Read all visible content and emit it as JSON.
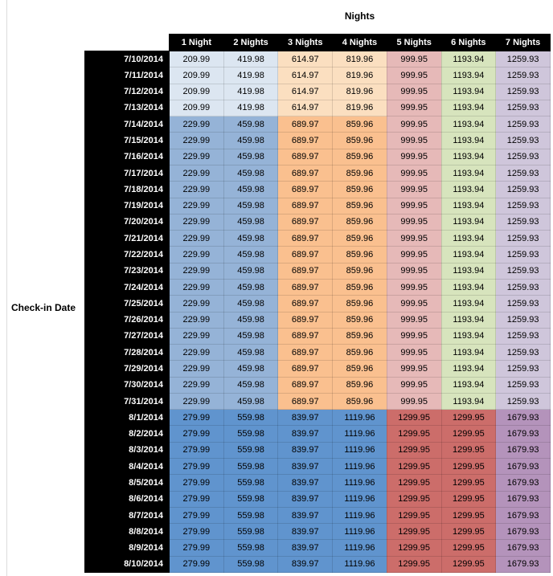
{
  "title": "Nights",
  "axis_label": "Check-in Date",
  "table": {
    "columns": [
      "1 Night",
      "2 Nights",
      "3 Nights",
      "4 Nights",
      "5 Nights",
      "6 Nights",
      "7 Nights"
    ],
    "rows": [
      {
        "date": "7/10/2014",
        "band": "early",
        "values": [
          "209.99",
          "419.98",
          "614.97",
          "819.96",
          "999.95",
          "1193.94",
          "1259.93"
        ]
      },
      {
        "date": "7/11/2014",
        "band": "early",
        "values": [
          "209.99",
          "419.98",
          "614.97",
          "819.96",
          "999.95",
          "1193.94",
          "1259.93"
        ]
      },
      {
        "date": "7/12/2014",
        "band": "early",
        "values": [
          "209.99",
          "419.98",
          "614.97",
          "819.96",
          "999.95",
          "1193.94",
          "1259.93"
        ]
      },
      {
        "date": "7/13/2014",
        "band": "early",
        "values": [
          "209.99",
          "419.98",
          "614.97",
          "819.96",
          "999.95",
          "1193.94",
          "1259.93"
        ]
      },
      {
        "date": "7/14/2014",
        "band": "mid",
        "values": [
          "229.99",
          "459.98",
          "689.97",
          "859.96",
          "999.95",
          "1193.94",
          "1259.93"
        ]
      },
      {
        "date": "7/15/2014",
        "band": "mid",
        "values": [
          "229.99",
          "459.98",
          "689.97",
          "859.96",
          "999.95",
          "1193.94",
          "1259.93"
        ]
      },
      {
        "date": "7/16/2014",
        "band": "mid",
        "values": [
          "229.99",
          "459.98",
          "689.97",
          "859.96",
          "999.95",
          "1193.94",
          "1259.93"
        ]
      },
      {
        "date": "7/17/2014",
        "band": "mid",
        "values": [
          "229.99",
          "459.98",
          "689.97",
          "859.96",
          "999.95",
          "1193.94",
          "1259.93"
        ]
      },
      {
        "date": "7/18/2014",
        "band": "mid",
        "values": [
          "229.99",
          "459.98",
          "689.97",
          "859.96",
          "999.95",
          "1193.94",
          "1259.93"
        ]
      },
      {
        "date": "7/19/2014",
        "band": "mid",
        "values": [
          "229.99",
          "459.98",
          "689.97",
          "859.96",
          "999.95",
          "1193.94",
          "1259.93"
        ]
      },
      {
        "date": "7/20/2014",
        "band": "mid",
        "values": [
          "229.99",
          "459.98",
          "689.97",
          "859.96",
          "999.95",
          "1193.94",
          "1259.93"
        ]
      },
      {
        "date": "7/21/2014",
        "band": "mid",
        "values": [
          "229.99",
          "459.98",
          "689.97",
          "859.96",
          "999.95",
          "1193.94",
          "1259.93"
        ]
      },
      {
        "date": "7/22/2014",
        "band": "mid",
        "values": [
          "229.99",
          "459.98",
          "689.97",
          "859.96",
          "999.95",
          "1193.94",
          "1259.93"
        ]
      },
      {
        "date": "7/23/2014",
        "band": "mid",
        "values": [
          "229.99",
          "459.98",
          "689.97",
          "859.96",
          "999.95",
          "1193.94",
          "1259.93"
        ]
      },
      {
        "date": "7/24/2014",
        "band": "mid",
        "values": [
          "229.99",
          "459.98",
          "689.97",
          "859.96",
          "999.95",
          "1193.94",
          "1259.93"
        ]
      },
      {
        "date": "7/25/2014",
        "band": "mid",
        "values": [
          "229.99",
          "459.98",
          "689.97",
          "859.96",
          "999.95",
          "1193.94",
          "1259.93"
        ]
      },
      {
        "date": "7/26/2014",
        "band": "mid",
        "values": [
          "229.99",
          "459.98",
          "689.97",
          "859.96",
          "999.95",
          "1193.94",
          "1259.93"
        ]
      },
      {
        "date": "7/27/2014",
        "band": "mid",
        "values": [
          "229.99",
          "459.98",
          "689.97",
          "859.96",
          "999.95",
          "1193.94",
          "1259.93"
        ]
      },
      {
        "date": "7/28/2014",
        "band": "mid",
        "values": [
          "229.99",
          "459.98",
          "689.97",
          "859.96",
          "999.95",
          "1193.94",
          "1259.93"
        ]
      },
      {
        "date": "7/29/2014",
        "band": "mid",
        "values": [
          "229.99",
          "459.98",
          "689.97",
          "859.96",
          "999.95",
          "1193.94",
          "1259.93"
        ]
      },
      {
        "date": "7/30/2014",
        "band": "mid",
        "values": [
          "229.99",
          "459.98",
          "689.97",
          "859.96",
          "999.95",
          "1193.94",
          "1259.93"
        ]
      },
      {
        "date": "7/31/2014",
        "band": "mid",
        "values": [
          "229.99",
          "459.98",
          "689.97",
          "859.96",
          "999.95",
          "1193.94",
          "1259.93"
        ]
      },
      {
        "date": "8/1/2014",
        "band": "late",
        "values": [
          "279.99",
          "559.98",
          "839.97",
          "1119.96",
          "1299.95",
          "1299.95",
          "1679.93"
        ]
      },
      {
        "date": "8/2/2014",
        "band": "late",
        "values": [
          "279.99",
          "559.98",
          "839.97",
          "1119.96",
          "1299.95",
          "1299.95",
          "1679.93"
        ]
      },
      {
        "date": "8/3/2014",
        "band": "late",
        "values": [
          "279.99",
          "559.98",
          "839.97",
          "1119.96",
          "1299.95",
          "1299.95",
          "1679.93"
        ]
      },
      {
        "date": "8/4/2014",
        "band": "late",
        "values": [
          "279.99",
          "559.98",
          "839.97",
          "1119.96",
          "1299.95",
          "1299.95",
          "1679.93"
        ]
      },
      {
        "date": "8/5/2014",
        "band": "late",
        "values": [
          "279.99",
          "559.98",
          "839.97",
          "1119.96",
          "1299.95",
          "1299.95",
          "1679.93"
        ]
      },
      {
        "date": "8/6/2014",
        "band": "late",
        "values": [
          "279.99",
          "559.98",
          "839.97",
          "1119.96",
          "1299.95",
          "1299.95",
          "1679.93"
        ]
      },
      {
        "date": "8/7/2014",
        "band": "late",
        "values": [
          "279.99",
          "559.98",
          "839.97",
          "1119.96",
          "1299.95",
          "1299.95",
          "1679.93"
        ]
      },
      {
        "date": "8/8/2014",
        "band": "late",
        "values": [
          "279.99",
          "559.98",
          "839.97",
          "1119.96",
          "1299.95",
          "1299.95",
          "1679.93"
        ]
      },
      {
        "date": "8/9/2014",
        "band": "late",
        "values": [
          "279.99",
          "559.98",
          "839.97",
          "1119.96",
          "1299.95",
          "1299.95",
          "1679.93"
        ]
      },
      {
        "date": "8/10/2014",
        "band": "late",
        "values": [
          "279.99",
          "559.98",
          "839.97",
          "1119.96",
          "1299.95",
          "1299.95",
          "1679.93"
        ]
      }
    ]
  },
  "colors": {
    "header_bg": "#000000",
    "header_text": "#ffffff",
    "band_fills": {
      "early": [
        "#dce6f1",
        "#dce6f1",
        "#fbdfc0",
        "#fbdfc0",
        "#e6b9b8",
        "#d7e4bd",
        "#cfc6db"
      ],
      "mid": [
        "#95b3d7",
        "#95b3d7",
        "#fac08f",
        "#fac08f",
        "#e6b9b8",
        "#d7e4bd",
        "#cfc6db"
      ],
      "late": [
        "#6094ce",
        "#6094ce",
        "#6094ce",
        "#6094ce",
        "#cc6d6a",
        "#cc6d6a",
        "#b493bb"
      ]
    }
  }
}
